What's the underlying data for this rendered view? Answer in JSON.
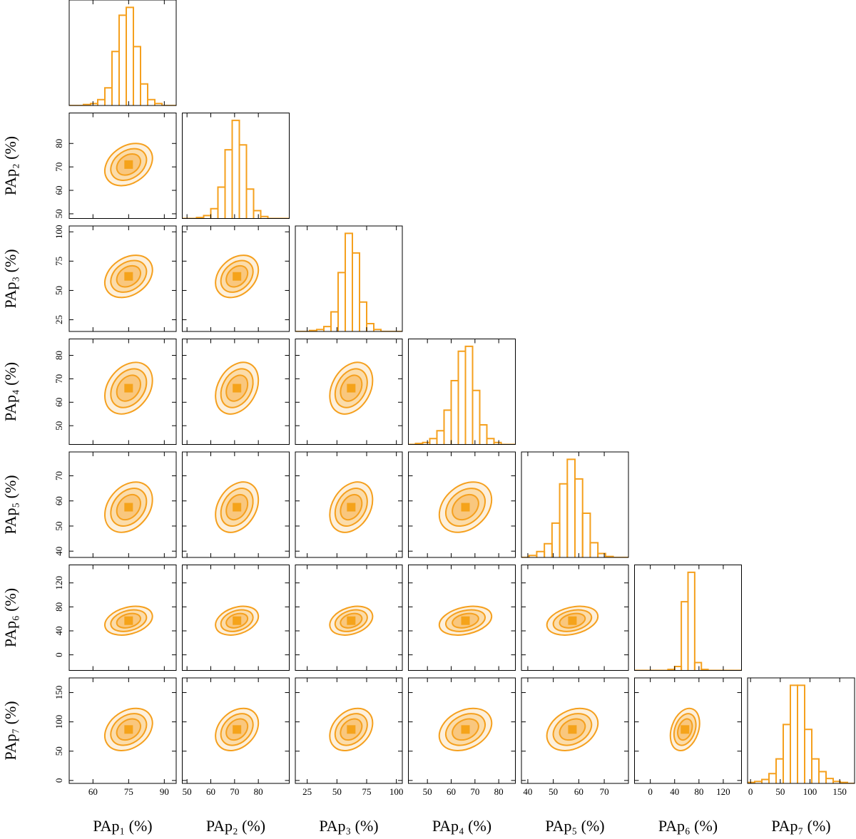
{
  "chart_data": {
    "type": "corner",
    "color": "#f5a01e",
    "correlation": 0.3,
    "contour_levels": [
      1,
      1.5,
      2
    ],
    "parameters": [
      {
        "label": "PAp₁ (%)",
        "lim": [
          50,
          95
        ],
        "ticks": [
          60,
          75,
          90
        ],
        "mean": 75,
        "std": 5,
        "bins": [
          50,
          53,
          56,
          59,
          62,
          65,
          68,
          71,
          74,
          77,
          80,
          83,
          86,
          89,
          92,
          95
        ],
        "values": [
          0,
          0,
          1,
          2,
          6,
          18,
          55,
          92,
          100,
          60,
          22,
          6,
          2,
          0,
          0
        ]
      },
      {
        "label": "PAp₂ (%)",
        "lim": [
          48,
          93
        ],
        "ticks": [
          50,
          60,
          70,
          80
        ],
        "mean": 71,
        "std": 4.5,
        "bins": [
          48,
          51,
          54,
          57,
          60,
          63,
          66,
          69,
          72,
          75,
          78,
          81,
          84,
          87,
          90,
          93
        ],
        "values": [
          0,
          0,
          1,
          3,
          10,
          32,
          70,
          100,
          75,
          30,
          8,
          2,
          0,
          0,
          0
        ]
      },
      {
        "label": "PAp₃ (%)",
        "lim": [
          15,
          105
        ],
        "ticks": [
          25,
          50,
          75,
          100
        ],
        "mean": 62,
        "std": 9,
        "bins": [
          15,
          21,
          27,
          33,
          39,
          45,
          51,
          57,
          63,
          69,
          75,
          81,
          87,
          93,
          99,
          105
        ],
        "values": [
          0,
          0,
          1,
          2,
          5,
          20,
          60,
          100,
          80,
          30,
          8,
          2,
          0,
          0,
          0
        ]
      },
      {
        "label": "PAp₄ (%)",
        "lim": [
          42,
          87
        ],
        "ticks": [
          50,
          60,
          70,
          80
        ],
        "mean": 66,
        "std": 5.5,
        "bins": [
          42,
          45,
          48,
          51,
          54,
          57,
          60,
          63,
          66,
          69,
          72,
          75,
          78,
          81,
          84,
          87
        ],
        "values": [
          0,
          1,
          2,
          6,
          14,
          35,
          65,
          95,
          100,
          55,
          20,
          6,
          2,
          0,
          0
        ]
      },
      {
        "label": "PAp₅ (%)",
        "lim": [
          37.5,
          79.5
        ],
        "ticks": [
          40,
          50,
          60,
          70
        ],
        "mean": 57.5,
        "std": 5,
        "bins": [
          37.5,
          40.5,
          43.5,
          46.5,
          49.5,
          52.5,
          55.5,
          58.5,
          61.5,
          64.5,
          67.5,
          70.5,
          73.5,
          76.5,
          79.5
        ],
        "values": [
          0,
          2,
          6,
          14,
          35,
          75,
          100,
          80,
          45,
          15,
          4,
          1,
          0,
          0
        ]
      },
      {
        "label": "PAp₆ (%)",
        "lim": [
          -26,
          150
        ],
        "ticks": [
          0,
          40,
          80,
          120
        ],
        "mean": 57,
        "std": 12,
        "bins": [
          -26,
          -15,
          -4,
          7,
          18,
          29,
          40,
          51,
          62,
          73,
          84,
          95,
          106,
          117,
          128,
          139,
          150
        ],
        "values": [
          0,
          0,
          0,
          0,
          0,
          1,
          4,
          70,
          100,
          8,
          1,
          0,
          0,
          0,
          0,
          0
        ]
      },
      {
        "label": "PAp₇ (%)",
        "lim": [
          -5,
          175
        ],
        "ticks": [
          0,
          50,
          100,
          150
        ],
        "mean": 87,
        "std": 18,
        "bins": [
          -5,
          7,
          19,
          31,
          43,
          55,
          67,
          79,
          91,
          103,
          115,
          127,
          139,
          151,
          163,
          175
        ],
        "values": [
          1,
          2,
          4,
          10,
          25,
          60,
          100,
          100,
          55,
          25,
          12,
          5,
          2,
          1,
          0
        ]
      }
    ]
  }
}
